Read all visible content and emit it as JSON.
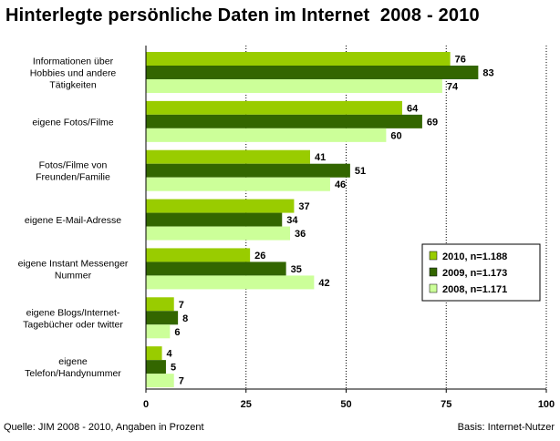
{
  "chart_data": {
    "type": "bar",
    "orientation": "horizontal",
    "title": "Hinterlegte persönliche Daten im Internet  2008 - 2010",
    "categories": [
      "Informationen über Hobbies und andere Tätigkeiten",
      "eigene Fotos/Filme",
      "Fotos/Filme von Freunden/Familie",
      "eigene E-Mail-Adresse",
      "eigene Instant Messenger Nummer",
      "eigene Blogs/Internet-Tagebücher oder twitter",
      "eigene Telefon/Handynummer"
    ],
    "category_lines": [
      [
        "Informationen über",
        "Hobbies und andere",
        "Tätigkeiten"
      ],
      [
        "eigene Fotos/Filme"
      ],
      [
        "Fotos/Filme von",
        "Freunden/Familie"
      ],
      [
        "eigene E-Mail-Adresse"
      ],
      [
        "eigene Instant Messenger",
        "Nummer"
      ],
      [
        "eigene Blogs/Internet-",
        "Tagebücher oder twitter"
      ],
      [
        "eigene",
        "Telefon/Handynummer"
      ]
    ],
    "series": [
      {
        "name": "2010, n=1.188",
        "color": "#99cc00",
        "values": [
          76,
          64,
          41,
          37,
          26,
          7,
          4
        ]
      },
      {
        "name": "2009, n=1.173",
        "color": "#336600",
        "values": [
          83,
          69,
          51,
          34,
          35,
          8,
          5
        ]
      },
      {
        "name": "2008, n=1.171",
        "color": "#ccff99",
        "values": [
          74,
          60,
          46,
          36,
          42,
          6,
          7
        ]
      }
    ],
    "xlim": [
      0,
      100
    ],
    "xticks": [
      0,
      25,
      50,
      75,
      100
    ],
    "grid": "vertical-dotted",
    "legend_position": "right"
  },
  "footer": {
    "source": "Quelle: JIM 2008 - 2010, Angaben in Prozent",
    "basis": "Basis: Internet-Nutzer"
  }
}
